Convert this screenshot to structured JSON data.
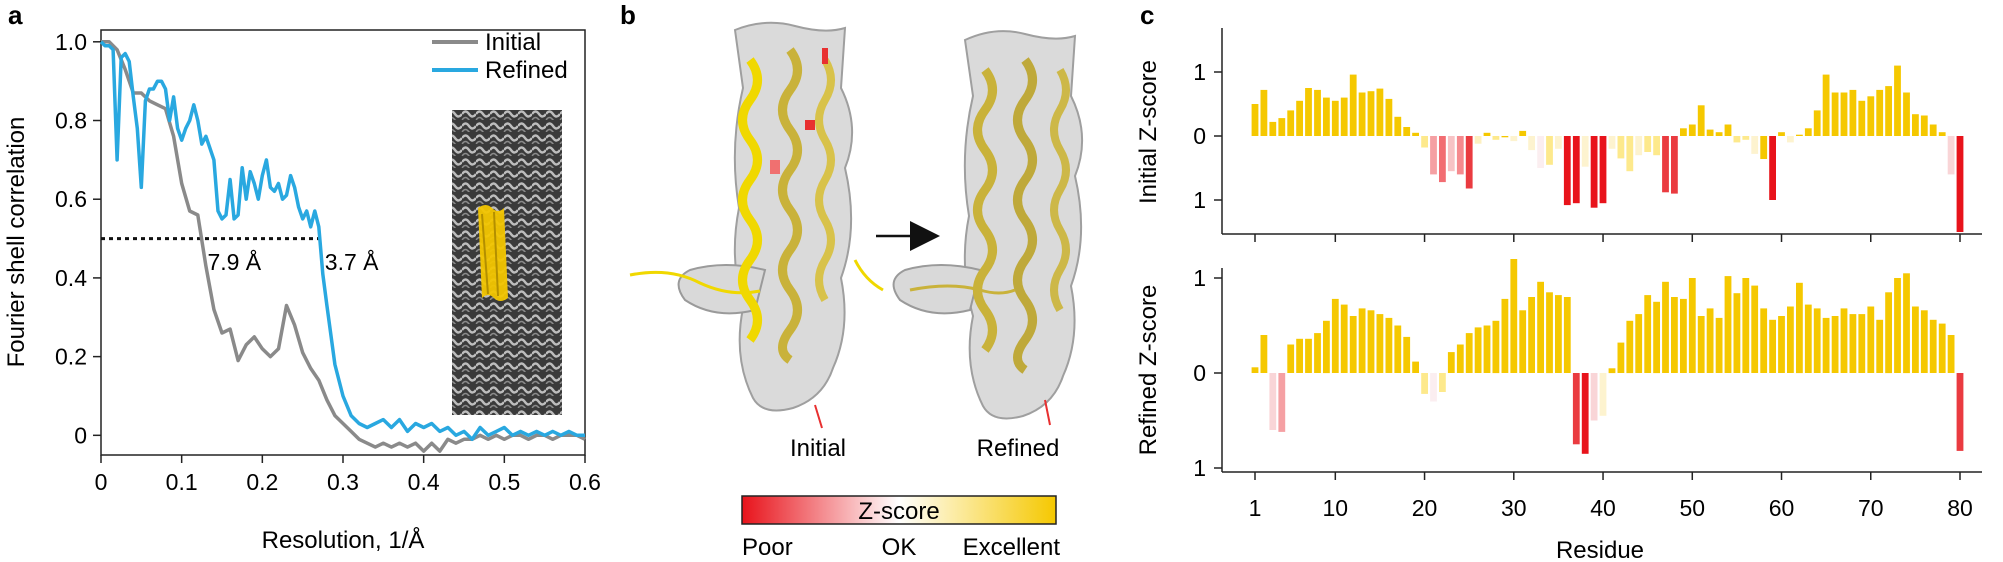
{
  "panels": {
    "a": "a",
    "b": "b",
    "c": "c"
  },
  "colors": {
    "initial": "#8a8a8a",
    "refined": "#29a8e0",
    "poor": "#e8131b",
    "ok": "#ffffff",
    "excellent": "#f5c800"
  },
  "structure": {
    "initial_label": "Initial",
    "refined_label": "Refined",
    "colorbar_title": "Z-score",
    "colorbar_poor": "Poor",
    "colorbar_ok": "OK",
    "colorbar_excellent": "Excellent"
  },
  "chart_data": [
    {
      "type": "line",
      "xlabel": "Resolution, 1/Å",
      "ylabel": "Fourier shell correlation",
      "xlim": [
        0,
        0.6
      ],
      "ylim": [
        -0.05,
        1.03
      ],
      "xticks": [
        0,
        0.1,
        0.2,
        0.3,
        0.4,
        0.5,
        0.6
      ],
      "xtick_labels": [
        "0",
        "0.1",
        "0.2",
        "0.3",
        "0.4",
        "0.5",
        "0.6"
      ],
      "yticks": [
        0,
        0.2,
        0.4,
        0.6,
        0.8,
        1.0
      ],
      "ytick_labels": [
        "0",
        "0.2",
        "0.4",
        "0.6",
        "0.8",
        "1.0"
      ],
      "threshold": 0.5,
      "threshold_x": [
        0,
        0.27
      ],
      "annotations": [
        {
          "text": "7.9 Å",
          "x": 0.127,
          "y": 0.45
        },
        {
          "text": "3.7 Å",
          "x": 0.27,
          "y": 0.45
        }
      ],
      "legend_position": "top-right",
      "series": [
        {
          "name": "Initial",
          "x": [
            0,
            0.01,
            0.02,
            0.03,
            0.04,
            0.05,
            0.06,
            0.07,
            0.08,
            0.09,
            0.1,
            0.11,
            0.12,
            0.13,
            0.14,
            0.15,
            0.16,
            0.17,
            0.18,
            0.19,
            0.2,
            0.21,
            0.22,
            0.23,
            0.24,
            0.25,
            0.26,
            0.27,
            0.28,
            0.29,
            0.3,
            0.31,
            0.32,
            0.33,
            0.34,
            0.35,
            0.36,
            0.37,
            0.38,
            0.39,
            0.4,
            0.41,
            0.42,
            0.43,
            0.44,
            0.45,
            0.46,
            0.47,
            0.48,
            0.49,
            0.5,
            0.51,
            0.52,
            0.53,
            0.54,
            0.55,
            0.56,
            0.57,
            0.58,
            0.59,
            0.6
          ],
          "y": [
            1.0,
            1.0,
            0.98,
            0.93,
            0.87,
            0.87,
            0.85,
            0.84,
            0.83,
            0.76,
            0.64,
            0.57,
            0.56,
            0.43,
            0.32,
            0.26,
            0.27,
            0.19,
            0.23,
            0.25,
            0.22,
            0.2,
            0.22,
            0.33,
            0.28,
            0.21,
            0.17,
            0.14,
            0.09,
            0.05,
            0.03,
            0.01,
            -0.01,
            -0.02,
            -0.03,
            -0.02,
            -0.03,
            -0.02,
            -0.03,
            -0.02,
            -0.04,
            -0.02,
            -0.04,
            -0.01,
            -0.02,
            -0.01,
            -0.01,
            0.0,
            -0.01,
            0.0,
            -0.01,
            0.0,
            0.0,
            -0.01,
            0.0,
            0.0,
            -0.01,
            0.0,
            0.0,
            0.0,
            -0.01
          ]
        },
        {
          "name": "Refined",
          "x": [
            0,
            0.005,
            0.01,
            0.015,
            0.02,
            0.025,
            0.03,
            0.035,
            0.04,
            0.045,
            0.05,
            0.055,
            0.06,
            0.065,
            0.07,
            0.075,
            0.08,
            0.085,
            0.09,
            0.095,
            0.1,
            0.105,
            0.11,
            0.115,
            0.12,
            0.125,
            0.13,
            0.135,
            0.14,
            0.145,
            0.15,
            0.155,
            0.16,
            0.165,
            0.17,
            0.175,
            0.18,
            0.185,
            0.19,
            0.195,
            0.2,
            0.205,
            0.21,
            0.215,
            0.22,
            0.225,
            0.23,
            0.235,
            0.24,
            0.245,
            0.25,
            0.255,
            0.26,
            0.265,
            0.27,
            0.275,
            0.28,
            0.29,
            0.3,
            0.31,
            0.32,
            0.33,
            0.34,
            0.35,
            0.36,
            0.37,
            0.38,
            0.39,
            0.4,
            0.41,
            0.42,
            0.43,
            0.44,
            0.45,
            0.46,
            0.47,
            0.48,
            0.49,
            0.5,
            0.51,
            0.52,
            0.53,
            0.54,
            0.55,
            0.56,
            0.57,
            0.58,
            0.59,
            0.6
          ],
          "y": [
            1.0,
            0.99,
            0.99,
            0.98,
            0.7,
            0.96,
            0.97,
            0.95,
            0.86,
            0.78,
            0.63,
            0.85,
            0.88,
            0.88,
            0.9,
            0.9,
            0.88,
            0.8,
            0.86,
            0.78,
            0.75,
            0.78,
            0.8,
            0.84,
            0.8,
            0.74,
            0.76,
            0.73,
            0.7,
            0.57,
            0.55,
            0.56,
            0.65,
            0.55,
            0.56,
            0.68,
            0.6,
            0.67,
            0.64,
            0.6,
            0.66,
            0.7,
            0.63,
            0.62,
            0.64,
            0.6,
            0.61,
            0.66,
            0.63,
            0.58,
            0.55,
            0.57,
            0.53,
            0.57,
            0.53,
            0.41,
            0.33,
            0.18,
            0.1,
            0.05,
            0.03,
            0.02,
            0.03,
            0.04,
            0.02,
            0.04,
            0.01,
            0.03,
            0.02,
            0.03,
            0.01,
            0.02,
            0.0,
            0.01,
            -0.01,
            0.02,
            0.0,
            0.01,
            0.02,
            0.0,
            0.01,
            0.0,
            0.01,
            0.0,
            0.01,
            0.0,
            0.01,
            0.0,
            0.0
          ]
        }
      ]
    },
    {
      "type": "bar",
      "ylabel": "Initial Z-score",
      "ylim": [
        -1.5,
        1.5
      ],
      "yticks": [
        1,
        0,
        -1
      ],
      "ytick_labels": [
        "1",
        "0",
        "1"
      ],
      "x": [
        1,
        2,
        3,
        4,
        5,
        6,
        7,
        8,
        9,
        10,
        11,
        12,
        13,
        14,
        15,
        16,
        17,
        18,
        19,
        20,
        21,
        22,
        23,
        24,
        25,
        26,
        27,
        28,
        29,
        30,
        31,
        32,
        33,
        34,
        35,
        36,
        37,
        38,
        39,
        40,
        41,
        42,
        43,
        44,
        45,
        46,
        47,
        48,
        49,
        50,
        51,
        52,
        53,
        54,
        55,
        56,
        57,
        58,
        59,
        60,
        61,
        62,
        63,
        64,
        65,
        66,
        67,
        68,
        69,
        70,
        71,
        72,
        73,
        74,
        75,
        76,
        77,
        78,
        79,
        80
      ],
      "values": [
        0.5,
        0.72,
        0.22,
        0.28,
        0.4,
        0.55,
        0.75,
        0.72,
        0.6,
        0.55,
        0.6,
        0.96,
        0.68,
        0.7,
        0.74,
        0.58,
        0.3,
        0.14,
        0.05,
        -0.18,
        -0.6,
        -0.72,
        -0.55,
        -0.6,
        -0.82,
        -0.12,
        0.05,
        -0.06,
        -0.02,
        -0.08,
        0.08,
        -0.22,
        -0.5,
        -0.45,
        -0.2,
        -1.08,
        -1.05,
        -0.48,
        -1.12,
        -1.05,
        -0.2,
        -0.35,
        -0.55,
        -0.3,
        -0.25,
        -0.3,
        -0.88,
        -0.9,
        0.12,
        0.18,
        0.48,
        0.1,
        0.06,
        0.18,
        -0.1,
        -0.06,
        -0.28,
        -0.36,
        -1.0,
        0.06,
        -0.1,
        0.02,
        0.12,
        0.4,
        0.96,
        0.68,
        0.68,
        0.72,
        0.55,
        0.62,
        0.72,
        0.78,
        1.1,
        0.68,
        0.34,
        0.32,
        0.18,
        0.06,
        -0.6,
        -1.5
      ],
      "colors": [
        "#f5c800",
        "#f5c800",
        "#f5c800",
        "#f5c800",
        "#f5c800",
        "#f5c800",
        "#f5c800",
        "#f5c800",
        "#f5c800",
        "#f5c800",
        "#f5c800",
        "#f5c800",
        "#f5c800",
        "#f5c800",
        "#f5c800",
        "#f5c800",
        "#f5c800",
        "#f5c800",
        "#f5c800",
        "#fde98c",
        "#f5a0a3",
        "#f26d72",
        "#f7c3c5",
        "#f58a8e",
        "#ea3b40",
        "#fdf0c0",
        "#f5c800",
        "#fde98c",
        "#f5c800",
        "#fdf3cf",
        "#f5c800",
        "#fdf3cf",
        "#fbeef0",
        "#fde98c",
        "#fdf3cf",
        "#e8131b",
        "#e8131b",
        "#fdf3cf",
        "#e8131b",
        "#e8131b",
        "#fdf3cf",
        "#fde98c",
        "#fde98c",
        "#fdf3cf",
        "#fde98c",
        "#fde98c",
        "#ea3b40",
        "#ea3b40",
        "#f5c800",
        "#f5c800",
        "#f5c800",
        "#f5c800",
        "#f5c800",
        "#f5c800",
        "#fde98c",
        "#fde98c",
        "#fdf3cf",
        "#f5c800",
        "#e8131b",
        "#f5c800",
        "#fdf3cf",
        "#f5c800",
        "#f5c800",
        "#f5c800",
        "#f5c800",
        "#f5c800",
        "#f5c800",
        "#f5c800",
        "#f5c800",
        "#f5c800",
        "#f5c800",
        "#f5c800",
        "#f5c800",
        "#f5c800",
        "#f5c800",
        "#f5c800",
        "#f5c800",
        "#f5c800",
        "#f9d5d7",
        "#e8131b"
      ]
    },
    {
      "type": "bar",
      "ylabel": "Refined Z-score",
      "xlabel": "Residue",
      "xlim": [
        0,
        81
      ],
      "ylim": [
        -1.0,
        1.0
      ],
      "xticks": [
        1,
        10,
        20,
        30,
        40,
        50,
        60,
        70,
        80
      ],
      "xtick_labels": [
        "1",
        "10",
        "20",
        "30",
        "40",
        "50",
        "60",
        "70",
        "80"
      ],
      "yticks": [
        1,
        0,
        -1
      ],
      "ytick_labels": [
        "1",
        "0",
        "1"
      ],
      "x": [
        1,
        2,
        3,
        4,
        5,
        6,
        7,
        8,
        9,
        10,
        11,
        12,
        13,
        14,
        15,
        16,
        17,
        18,
        19,
        20,
        21,
        22,
        23,
        24,
        25,
        26,
        27,
        28,
        29,
        30,
        31,
        32,
        33,
        34,
        35,
        36,
        37,
        38,
        39,
        40,
        41,
        42,
        43,
        44,
        45,
        46,
        47,
        48,
        49,
        50,
        51,
        52,
        53,
        54,
        55,
        56,
        57,
        58,
        59,
        60,
        61,
        62,
        63,
        64,
        65,
        66,
        67,
        68,
        69,
        70,
        71,
        72,
        73,
        74,
        75,
        76,
        77,
        78,
        79,
        80
      ],
      "values": [
        0.06,
        0.4,
        -0.6,
        -0.62,
        0.3,
        0.36,
        0.36,
        0.42,
        0.55,
        0.78,
        0.72,
        0.6,
        0.68,
        0.66,
        0.62,
        0.58,
        0.5,
        0.38,
        0.12,
        -0.22,
        -0.3,
        -0.2,
        0.22,
        0.3,
        0.42,
        0.48,
        0.5,
        0.55,
        0.78,
        1.2,
        0.66,
        0.8,
        0.96,
        0.85,
        0.82,
        0.8,
        -0.75,
        -0.85,
        -0.5,
        -0.45,
        0.05,
        0.32,
        0.55,
        0.62,
        0.82,
        0.75,
        0.96,
        0.8,
        0.78,
        1.0,
        0.6,
        0.68,
        0.58,
        1.02,
        0.84,
        1.0,
        0.92,
        0.68,
        0.56,
        0.6,
        0.7,
        0.95,
        0.72,
        0.68,
        0.58,
        0.6,
        0.68,
        0.62,
        0.62,
        0.7,
        0.56,
        0.85,
        1.0,
        1.05,
        0.7,
        0.66,
        0.56,
        0.52,
        0.4,
        -0.82
      ],
      "colors": [
        "#f5c800",
        "#f5c800",
        "#f9d5d7",
        "#f5a0a3",
        "#f5c800",
        "#f5c800",
        "#f5c800",
        "#f5c800",
        "#f5c800",
        "#f5c800",
        "#f5c800",
        "#f5c800",
        "#f5c800",
        "#f5c800",
        "#f5c800",
        "#f5c800",
        "#f5c800",
        "#f5c800",
        "#f5c800",
        "#fde98c",
        "#fbeef0",
        "#fde98c",
        "#f5c800",
        "#f5c800",
        "#f5c800",
        "#f5c800",
        "#f5c800",
        "#f5c800",
        "#f5c800",
        "#f5c800",
        "#f5c800",
        "#f5c800",
        "#f5c800",
        "#f5c800",
        "#f5c800",
        "#f5c800",
        "#ea3b40",
        "#e8131b",
        "#f9d5d7",
        "#fdf3cf",
        "#f5c800",
        "#f5c800",
        "#f5c800",
        "#f5c800",
        "#f5c800",
        "#f5c800",
        "#f5c800",
        "#f5c800",
        "#f5c800",
        "#f5c800",
        "#f5c800",
        "#f5c800",
        "#f5c800",
        "#f5c800",
        "#f5c800",
        "#f5c800",
        "#f5c800",
        "#f5c800",
        "#f5c800",
        "#f5c800",
        "#f5c800",
        "#f5c800",
        "#f5c800",
        "#f5c800",
        "#f5c800",
        "#f5c800",
        "#f5c800",
        "#f5c800",
        "#f5c800",
        "#f5c800",
        "#f5c800",
        "#f5c800",
        "#f5c800",
        "#f5c800",
        "#f5c800",
        "#f5c800",
        "#f5c800",
        "#f5c800",
        "#f5c800",
        "#ea3b40"
      ]
    }
  ]
}
